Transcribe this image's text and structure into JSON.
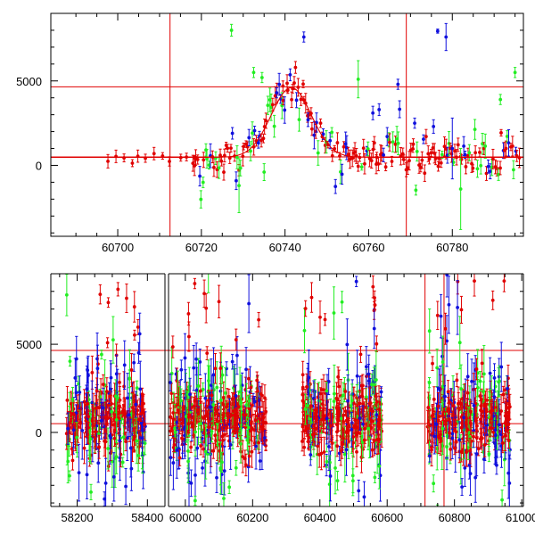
{
  "chart_data": [
    {
      "type": "scatter",
      "title": "",
      "xlabel": "",
      "ylabel": "",
      "xlim": [
        60684,
        60797
      ],
      "ylim": [
        -4200,
        9000
      ],
      "xticks": [
        60700,
        60720,
        60740,
        60760,
        60780
      ],
      "yticks": [
        0,
        5000
      ],
      "xtick_labels": [
        "60700",
        "60720",
        "60740",
        "60760",
        "60780"
      ],
      "ytick_labels": [
        "0",
        "5000"
      ],
      "hlines": [
        4650,
        500
      ],
      "vlines": [
        60712.5,
        60769
      ],
      "fit_curve": {
        "type": "gaussian",
        "baseline": 480,
        "amplitude": 4120,
        "center": 60741.5,
        "sigma": 4.8,
        "color": "#e00000"
      },
      "series_colors": {
        "red": "#e00000",
        "green": "#22ee22",
        "blue": "#1010dd"
      },
      "highlighted_points": [
        {
          "x": 60727.2,
          "y": 8000,
          "err": 350,
          "color": "#22ee22"
        },
        {
          "x": 60776.5,
          "y": 7950,
          "err": 120,
          "color": "#1010dd"
        },
        {
          "x": 60778.5,
          "y": 7600,
          "err": 800,
          "color": "#1010dd"
        },
        {
          "x": 60744.5,
          "y": 7600,
          "err": 300,
          "color": "#1010dd"
        },
        {
          "x": 60732.5,
          "y": 5500,
          "err": 300,
          "color": "#22ee22"
        },
        {
          "x": 60734.5,
          "y": 5200,
          "err": 300,
          "color": "#22ee22"
        },
        {
          "x": 60742.5,
          "y": 5800,
          "err": 350,
          "color": "#e00000"
        },
        {
          "x": 60767.0,
          "y": 4800,
          "err": 300,
          "color": "#1010dd"
        },
        {
          "x": 60757.5,
          "y": 5100,
          "err": 1100,
          "color": "#22ee22"
        },
        {
          "x": 60795.0,
          "y": 5500,
          "err": 300,
          "color": "#22ee22"
        },
        {
          "x": 60791.5,
          "y": 3900,
          "err": 300,
          "color": "#22ee22"
        },
        {
          "x": 60738.0,
          "y": 4300,
          "err": 300,
          "color": "#1010dd"
        },
        {
          "x": 60739.5,
          "y": 4700,
          "err": 300,
          "color": "#e00000"
        },
        {
          "x": 60729.0,
          "y": -1200,
          "err": 1600,
          "color": "#22ee22"
        },
        {
          "x": 60782.0,
          "y": -1400,
          "err": 2400,
          "color": "#22ee22"
        },
        {
          "x": 60780.0,
          "y": 1000,
          "err": 1800,
          "color": "#1010dd"
        },
        {
          "x": 60735.0,
          "y": -400,
          "err": 500,
          "color": "#22ee22"
        },
        {
          "x": 60745.5,
          "y": 2700,
          "err": 400,
          "color": "#1010dd"
        },
        {
          "x": 60761.0,
          "y": 3100,
          "err": 400,
          "color": "#1010dd"
        },
        {
          "x": 60762.5,
          "y": 3300,
          "err": 350,
          "color": "#1010dd"
        },
        {
          "x": 60771.0,
          "y": 2500,
          "err": 300,
          "color": "#1010dd"
        },
        {
          "x": 60775.5,
          "y": 2300,
          "err": 400,
          "color": "#1010dd"
        }
      ]
    },
    {
      "type": "scatter",
      "title": "",
      "xlabel": "",
      "ylabel": "",
      "xlim": [
        58125,
        61005
      ],
      "ylim": [
        -4200,
        9000
      ],
      "xticks": [
        58200,
        58400,
        60000,
        60200,
        60400,
        60600,
        60800,
        61000
      ],
      "yticks": [
        0,
        5000
      ],
      "xtick_labels": [
        "58200",
        "58400",
        "60000",
        "60200",
        "60400",
        "60600",
        "60800",
        "61000"
      ],
      "ytick_labels": [
        "0",
        "5000"
      ],
      "axis_breaks": [
        {
          "from": 58450,
          "to": 59950
        }
      ],
      "hlines": [
        4650,
        500
      ],
      "vlines": [
        60712.5,
        60769
      ],
      "observing_seasons": [
        [
          58170,
          58395
        ],
        [
          59955,
          60240
        ],
        [
          60345,
          60585
        ],
        [
          60720,
          60965
        ]
      ],
      "series_colors": {
        "red": "#e00000",
        "green": "#22ee22",
        "blue": "#1010dd"
      },
      "baseline_flux": 700,
      "scatter_sigma": 900
    }
  ]
}
